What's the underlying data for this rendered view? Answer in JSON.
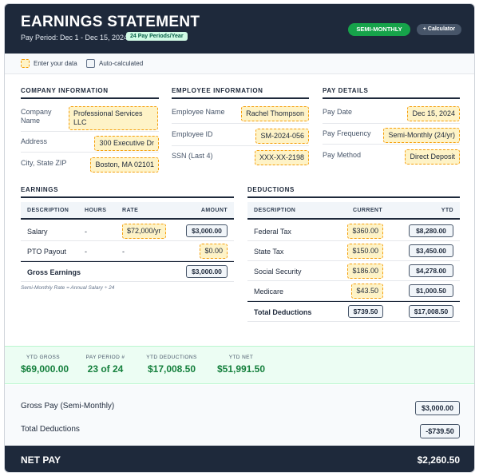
{
  "header": {
    "title": "EARNINGS STATEMENT",
    "pay_period": "Pay Period: Dec 1 - Dec 15, 2024",
    "badge": "24 Pay Periods/Year",
    "frequency_pill": "SEMI-MONTHLY",
    "calculator_button": "+ Calculator"
  },
  "legend": {
    "input": "Enter your data",
    "auto": "Auto-calculated"
  },
  "company": {
    "heading": "COMPANY INFORMATION",
    "name_label": "Company Name",
    "name": "Professional Services LLC",
    "address_label": "Address",
    "address": "300 Executive Dr",
    "city_label": "City, State ZIP",
    "city": "Boston, MA 02101"
  },
  "employee": {
    "heading": "EMPLOYEE INFORMATION",
    "name_label": "Employee Name",
    "name": "Rachel Thompson",
    "id_label": "Employee ID",
    "id": "SM-2024-056",
    "ssn_label": "SSN (Last 4)",
    "ssn": "XXX-XX-2198"
  },
  "pay": {
    "heading": "PAY DETAILS",
    "date_label": "Pay Date",
    "date": "Dec 15, 2024",
    "freq_label": "Pay Frequency",
    "freq": "Semi-Monthly (24/yr)",
    "method_label": "Pay Method",
    "method": "Direct Deposit"
  },
  "earnings": {
    "heading": "EARNINGS",
    "columns": [
      "DESCRIPTION",
      "HOURS",
      "RATE",
      "AMOUNT"
    ],
    "rows": [
      {
        "desc": "Salary",
        "hours": "-",
        "rate": "$72,000/yr",
        "amount": "$3,000.00"
      },
      {
        "desc": "PTO Payout",
        "hours": "-",
        "rate": "-",
        "amount": "$0.00"
      }
    ],
    "total_label": "Gross Earnings",
    "total": "$3,000.00",
    "note": "Semi-Monthly Rate = Annual Salary ÷ 24"
  },
  "deductions": {
    "heading": "DEDUCTIONS",
    "columns": [
      "DESCRIPTION",
      "CURRENT",
      "YTD"
    ],
    "rows": [
      {
        "desc": "Federal Tax",
        "current": "$360.00",
        "ytd": "$8,280.00"
      },
      {
        "desc": "State Tax",
        "current": "$150.00",
        "ytd": "$3,450.00"
      },
      {
        "desc": "Social Security",
        "current": "$186.00",
        "ytd": "$4,278.00"
      },
      {
        "desc": "Medicare",
        "current": "$43.50",
        "ytd": "$1,000.50"
      }
    ],
    "total_label": "Total Deductions",
    "total_current": "$739.50",
    "total_ytd": "$17,008.50"
  },
  "ytd": [
    {
      "label": "YTD GROSS",
      "value": "$69,000.00"
    },
    {
      "label": "PAY PERIOD #",
      "value": "23 of 24"
    },
    {
      "label": "YTD DEDUCTIONS",
      "value": "$17,008.50"
    },
    {
      "label": "YTD NET",
      "value": "$51,991.50"
    }
  ],
  "summary": {
    "gross_label": "Gross Pay (Semi-Monthly)",
    "gross": "$3,000.00",
    "deductions_label": "Total Deductions",
    "deductions": "-$739.50"
  },
  "net": {
    "label": "NET PAY",
    "value": "$2,260.50"
  },
  "colors": {
    "header": "#1e293b",
    "accent_green": "#16a34a",
    "input_bg": "#fef3c7",
    "input_border": "#f59e0b"
  }
}
